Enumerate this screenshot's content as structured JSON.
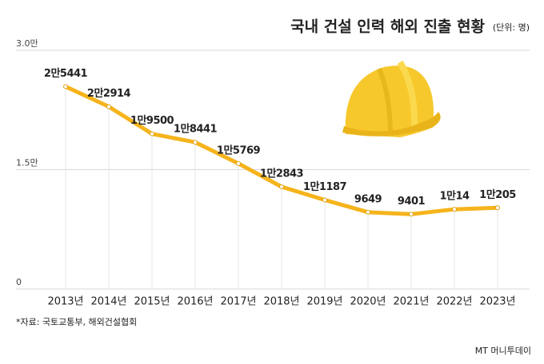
{
  "chart_data": {
    "type": "line",
    "title": "국내 건설 인력 해외 진출 현황",
    "subtitle": "(단위: 명)",
    "source": "*자료: 국토교통부, 해외건설협회",
    "watermark": "MT 머니투데이",
    "categories": [
      "2013년",
      "2014년",
      "2015년",
      "2016년",
      "2017년",
      "2018년",
      "2019년",
      "2020년",
      "2021년",
      "2022년",
      "2023년"
    ],
    "values": [
      25441,
      22914,
      19500,
      18441,
      15769,
      12843,
      11187,
      9649,
      9401,
      10014,
      10205
    ],
    "value_labels": [
      "2만5441",
      "2만2914",
      "1만9500",
      "1만8441",
      "1만5769",
      "1만2843",
      "1만1187",
      "9649",
      "9401",
      "1만14",
      "1만205"
    ],
    "color": "#f5b41c",
    "ylim": [
      0,
      30000
    ],
    "yticks": [
      {
        "value": 0,
        "label": "0"
      },
      {
        "value": 15000,
        "label": "1.5만"
      },
      {
        "value": 30000,
        "label": "3.0만"
      }
    ],
    "grid": true
  }
}
